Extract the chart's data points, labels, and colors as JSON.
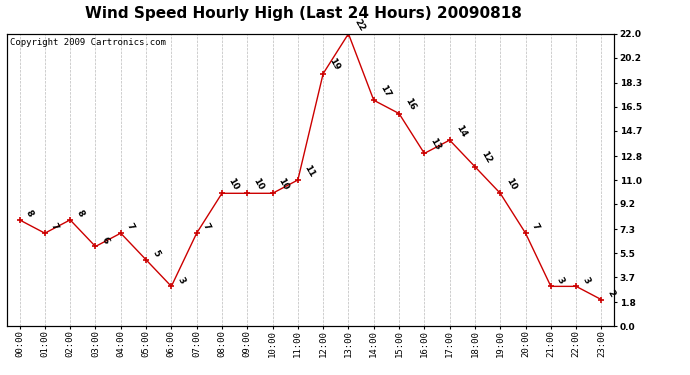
{
  "title": "Wind Speed Hourly High (Last 24 Hours) 20090818",
  "copyright": "Copyright 2009 Cartronics.com",
  "hours": [
    "00:00",
    "01:00",
    "02:00",
    "03:00",
    "04:00",
    "05:00",
    "06:00",
    "07:00",
    "08:00",
    "09:00",
    "10:00",
    "11:00",
    "12:00",
    "13:00",
    "14:00",
    "15:00",
    "16:00",
    "17:00",
    "18:00",
    "19:00",
    "20:00",
    "21:00",
    "22:00",
    "23:00"
  ],
  "values": [
    8,
    7,
    8,
    6,
    7,
    5,
    3,
    7,
    10,
    10,
    10,
    11,
    19,
    22,
    17,
    16,
    13,
    14,
    12,
    10,
    7,
    3,
    3,
    2
  ],
  "line_color": "#cc0000",
  "marker_color": "#cc0000",
  "grid_color": "#bbbbbb",
  "background_color": "#ffffff",
  "title_fontsize": 11,
  "copyright_fontsize": 6.5,
  "label_fontsize": 6.5,
  "tick_fontsize": 6.5,
  "ylim": [
    0.0,
    22.0
  ],
  "yticks_right": [
    0.0,
    1.8,
    3.7,
    5.5,
    7.3,
    9.2,
    11.0,
    12.8,
    14.7,
    16.5,
    18.3,
    20.2,
    22.0
  ]
}
